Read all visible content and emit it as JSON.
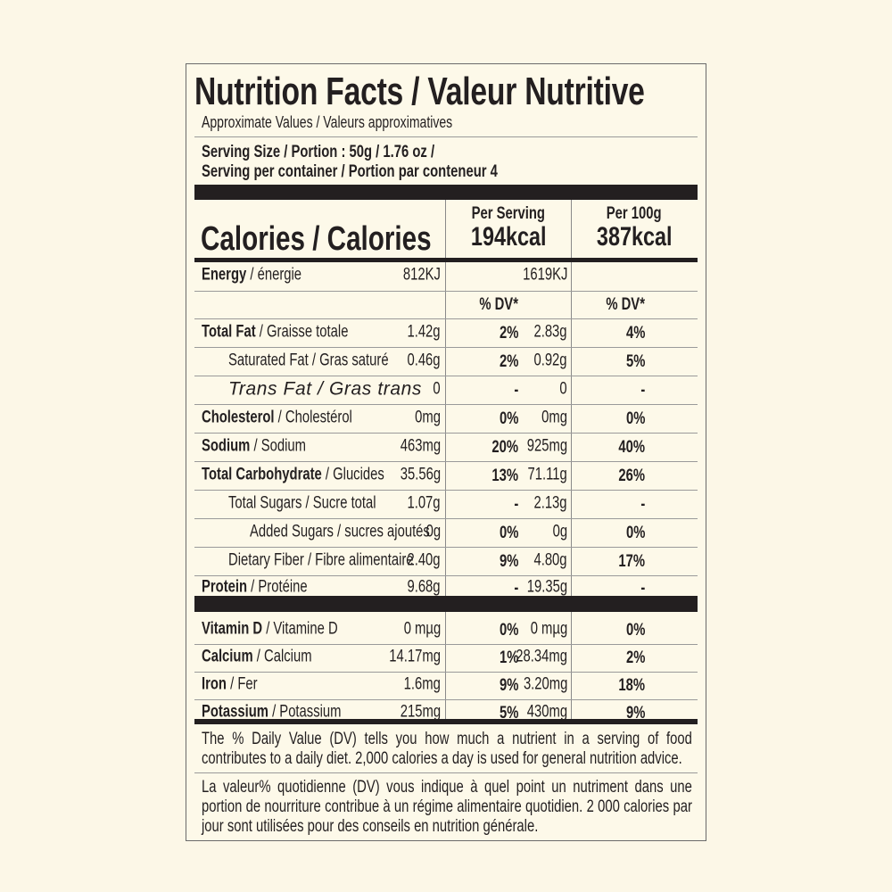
{
  "title": "Nutrition Facts / Valeur Nutritive",
  "approx": "Approximate Values / Valeurs approximatives",
  "serving_size": "Serving Size / Portion : 50g / 1.76 oz /",
  "servings_per_container": "Serving per container / Portion par conteneur  4",
  "calories_label": "Calories / Calories",
  "columns": [
    {
      "header": "Per Serving",
      "calories": "194kcal"
    },
    {
      "header": "Per 100g",
      "calories": "387kcal"
    }
  ],
  "dv_header": "% DV*",
  "rows": [
    {
      "bold": "Energy",
      "name": " / énergie",
      "v1": "812KJ",
      "d1": "",
      "v2": "1619KJ",
      "d2": ""
    },
    {
      "bold": "",
      "name": "",
      "v1": "",
      "d1": "% DV*",
      "v2": "",
      "d2": "% DV*"
    },
    {
      "bold": "Total Fat",
      "name": " / Graisse totale",
      "v1": "1.42g",
      "d1": "2%",
      "v2": "2.83g",
      "d2": "4%"
    },
    {
      "bold": "",
      "name": "Saturated Fat / Gras saturé",
      "v1": "0.46g",
      "d1": "2%",
      "v2": "0.92g",
      "d2": "5%"
    },
    {
      "bold": "",
      "name": "Trans Fat / Gras trans",
      "v1": "0",
      "d1": "-",
      "v2": "0",
      "d2": "-"
    },
    {
      "bold": "Cholesterol",
      "name": " / Cholestérol",
      "v1": "0mg",
      "d1": "0%",
      "v2": "0mg",
      "d2": "0%"
    },
    {
      "bold": "Sodium",
      "name": " / Sodium",
      "v1": "463mg",
      "d1": "20%",
      "v2": "925mg",
      "d2": "40%"
    },
    {
      "bold": "Total Carbohydrate",
      "name": " / Glucides",
      "v1": "35.56g",
      "d1": "13%",
      "v2": "71.11g",
      "d2": "26%"
    },
    {
      "bold": "",
      "name": "Total Sugars / Sucre total",
      "v1": "1.07g",
      "d1": "-",
      "v2": "2.13g",
      "d2": "-"
    },
    {
      "bold": "",
      "name": "Added Sugars / sucres ajoutés",
      "v1": "0g",
      "d1": "0%",
      "v2": "0g",
      "d2": "0%"
    },
    {
      "bold": "",
      "name": "Dietary Fiber / Fibre alimentaire",
      "v1": "2.40g",
      "d1": "9%",
      "v2": "4.80g",
      "d2": "17%"
    },
    {
      "bold": "Protein",
      "name": " / Protéine",
      "v1": "9.68g",
      "d1": "-",
      "v2": "19.35g",
      "d2": "-"
    },
    {
      "bold": "Vitamin D",
      "name": " / Vitamine D",
      "v1": "0 mµg",
      "d1": "0%",
      "v2": "0 mµg",
      "d2": "0%"
    },
    {
      "bold": "Calcium",
      "name": " / Calcium",
      "v1": "14.17mg",
      "d1": "1%",
      "v2": "28.34mg",
      "d2": "2%"
    },
    {
      "bold": "Iron",
      "name": " / Fer",
      "v1": "1.6mg",
      "d1": "9%",
      "v2": "3.20mg",
      "d2": "18%"
    },
    {
      "bold": "Potassium",
      "name": " / Potassium",
      "v1": "215mg",
      "d1": "5%",
      "v2": "430mg",
      "d2": "9%"
    }
  ],
  "footnote_en": "The % Daily Value (DV) tells you how much a nutrient in a serving of food contributes to a daily diet. 2,000 calories a day is used for general nutrition advice.",
  "footnote_fr": "La valeur% quotidienne (DV) vous indique à quel point un nutriment dans une portion de nourriture contribue à un régime alimentaire quotidien. 2 000 calories par jour sont utilisées pour des conseils en nutrition générale.",
  "colors": {
    "background": "#fcf7e7",
    "text": "#231f20",
    "rule": "#9a9a9a"
  }
}
